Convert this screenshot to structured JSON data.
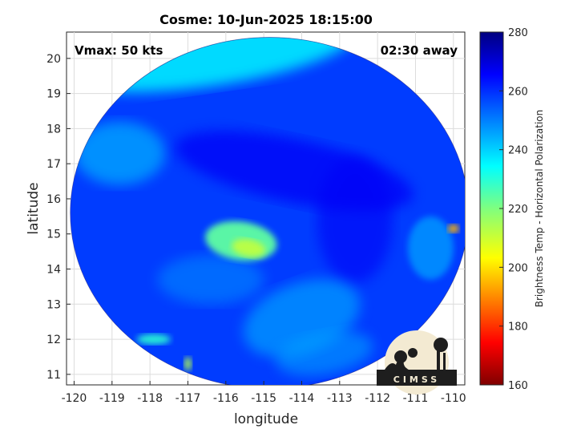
{
  "chart_data": {
    "type": "heatmap",
    "title": "Cosme: 10-Jun-2025 18:15:00",
    "xlabel": "longitude",
    "ylabel": "latitude",
    "xlim": [
      -120.2,
      -109.7
    ],
    "ylim": [
      10.7,
      20.75
    ],
    "x_ticks": [
      -120,
      -119,
      -118,
      -117,
      -116,
      -115,
      -114,
      -113,
      -112,
      -111,
      -110
    ],
    "y_ticks": [
      11,
      12,
      13,
      14,
      15,
      16,
      17,
      18,
      19,
      20
    ],
    "grid": true,
    "annotations": {
      "top_left": "Vmax: 50 kts",
      "top_right": "02:30 away"
    },
    "swath_center": [
      -114.85,
      15.6
    ],
    "colorbar": {
      "label": "Brightness Temp - Horizontal Polarization",
      "range": [
        160,
        280
      ],
      "ticks": [
        160,
        180,
        200,
        220,
        240,
        260,
        280
      ],
      "colormap": "jet"
    },
    "features": [
      {
        "name": "background",
        "value": 258
      },
      {
        "name": "northwest-cyan-band",
        "value": 236
      },
      {
        "name": "spiral-band-dark",
        "value": 266
      },
      {
        "name": "eye-region-warm",
        "value": 224
      },
      {
        "name": "southern-rainband",
        "value": 246
      },
      {
        "name": "eastern-convection-hotspot",
        "value": 196
      },
      {
        "name": "southwest-cell",
        "value": 230
      }
    ]
  },
  "logo": {
    "text": "CIMSS"
  }
}
